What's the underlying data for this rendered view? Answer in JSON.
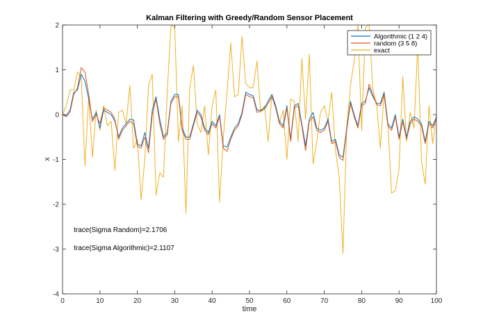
{
  "chart_data": {
    "type": "line",
    "title": "Kalman Filtering with Greedy/Random Sensor Placement",
    "xlabel": "time",
    "ylabel": "x",
    "xlim": [
      0,
      100
    ],
    "ylim": [
      -4,
      2
    ],
    "xticks": [
      0,
      10,
      20,
      30,
      40,
      50,
      60,
      70,
      80,
      90,
      100
    ],
    "yticks": [
      -4,
      -3,
      -2,
      -1,
      0,
      1,
      2
    ],
    "grid": false,
    "legend_position": "top-right",
    "annotations": [
      {
        "text": "trace(Sigma Random)=2.1706",
        "x": 3,
        "y": -2.62
      },
      {
        "text": "trace(Sigma Algorithmic)=2.1107",
        "x": 3,
        "y": -3.02
      }
    ],
    "series": [
      {
        "name": "Algorithmic (1  2  4)",
        "color": "#0072BD",
        "values": [
          0,
          -0.02,
          0.1,
          0.5,
          0.55,
          0.9,
          0.75,
          0.35,
          -0.1,
          0.05,
          -0.3,
          0.1,
          0.05,
          0.0,
          -0.15,
          -0.5,
          -0.3,
          -0.2,
          -0.1,
          -0.12,
          -0.65,
          -0.7,
          -0.4,
          -0.75,
          0.1,
          0.4,
          -0.1,
          -0.5,
          -0.4,
          0.3,
          0.45,
          0.45,
          -0.3,
          -0.5,
          -0.5,
          -0.2,
          0.1,
          0.0,
          -0.3,
          -0.4,
          -0.15,
          -0.25,
          0.0,
          -0.7,
          -0.72,
          -0.5,
          -0.3,
          -0.2,
          0.05,
          0.5,
          0.45,
          0.42,
          0.1,
          0.1,
          0.15,
          0.3,
          0.45,
          0.2,
          -0.15,
          -0.25,
          0.2,
          -0.55,
          0.2,
          0.25,
          -0.2,
          -0.7,
          -0.1,
          0.05,
          -0.3,
          -0.35,
          -0.3,
          -0.1,
          -0.6,
          -0.55,
          -0.9,
          -0.95,
          -0.3,
          0.3,
          0.0,
          -0.25,
          0.25,
          0.3,
          0.6,
          0.4,
          0.25,
          0.25,
          0.5,
          -0.2,
          -0.3,
          0.0,
          -0.5,
          -0.1,
          -0.5,
          -0.15,
          -0.05,
          -0.1,
          -0.2,
          -0.6,
          -0.15,
          -0.25,
          -0.05
        ]
      },
      {
        "name": "random (3  5  8)",
        "color": "#D95319",
        "values": [
          0,
          -0.05,
          0.05,
          0.45,
          0.6,
          1.05,
          0.95,
          0.45,
          -0.15,
          0.0,
          -0.2,
          0.15,
          0.1,
          0.05,
          -0.1,
          -0.55,
          -0.35,
          -0.25,
          -0.15,
          -0.2,
          -0.7,
          -0.75,
          -0.5,
          -0.85,
          0.0,
          0.35,
          -0.2,
          -0.55,
          -0.45,
          0.25,
          0.4,
          0.4,
          -0.35,
          -0.55,
          -0.55,
          -0.25,
          0.05,
          -0.05,
          -0.35,
          -0.45,
          -0.2,
          -0.3,
          -0.05,
          -0.75,
          -0.82,
          -0.55,
          -0.35,
          -0.25,
          0.0,
          0.45,
          0.4,
          0.38,
          0.05,
          0.08,
          0.12,
          0.25,
          0.4,
          0.15,
          -0.2,
          -0.3,
          0.15,
          -0.6,
          0.15,
          0.2,
          -0.25,
          -0.8,
          -0.15,
          -0.05,
          -0.35,
          -0.4,
          -0.35,
          -0.15,
          -0.65,
          -0.6,
          -0.95,
          -1.02,
          -0.35,
          0.25,
          -0.05,
          -0.3,
          0.2,
          0.25,
          0.68,
          0.45,
          0.22,
          0.2,
          0.45,
          -0.25,
          -0.35,
          -0.05,
          -0.55,
          -0.15,
          -0.55,
          -0.2,
          -0.1,
          -0.15,
          -0.25,
          -0.65,
          -0.2,
          -0.3,
          -0.1
        ]
      },
      {
        "name": "exact",
        "color": "#EDB120",
        "values": [
          0,
          0.2,
          0.55,
          0.55,
          0.95,
          0.85,
          -1.15,
          0.4,
          -0.95,
          0.1,
          -0.35,
          0.2,
          -0.25,
          -0.15,
          -1.25,
          0.05,
          0.1,
          -0.2,
          0.65,
          -0.75,
          -0.55,
          -1.9,
          -1.0,
          0.65,
          0.9,
          -1.8,
          -1.3,
          -1.4,
          0.5,
          2.0,
          1.95,
          -0.6,
          0.2,
          -2.2,
          0.6,
          1.1,
          -0.2,
          -0.4,
          0.2,
          -0.9,
          0.2,
          0.55,
          -1.95,
          -0.5,
          0.5,
          1.6,
          0.4,
          0.45,
          1.75,
          0.7,
          0.6,
          0.6,
          1.2,
          0.05,
          0.2,
          -0.6,
          0.45,
          0.2,
          -0.2,
          0.1,
          -1.0,
          0.35,
          0.3,
          -0.6,
          1.25,
          -0.1,
          1.35,
          -1.1,
          -0.6,
          0.05,
          0.2,
          -0.15,
          0.5,
          -0.8,
          -1.4,
          -3.1,
          -0.3,
          0.65,
          1.2,
          2.0,
          -0.35,
          1.95,
          2.0,
          0.55,
          0.25,
          -0.75,
          0.5,
          -0.15,
          -1.75,
          -1.7,
          -1.2,
          0.85,
          -0.6,
          0.05,
          -0.3,
          1.55,
          -1.05,
          -1.55,
          0.2,
          -0.65,
          0.0
        ]
      }
    ]
  }
}
